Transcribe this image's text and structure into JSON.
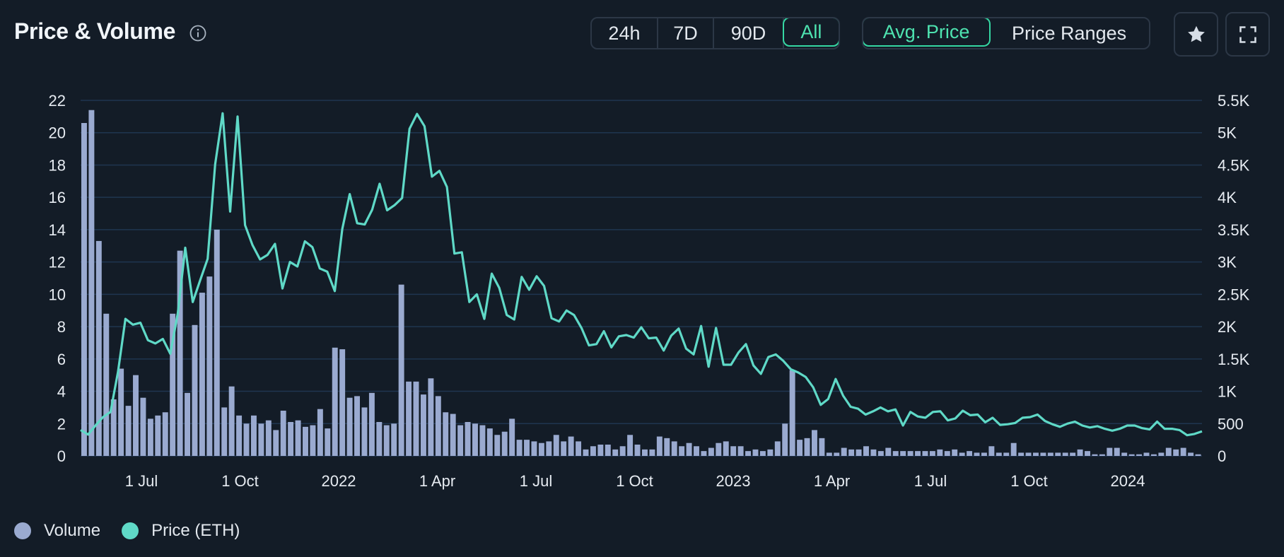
{
  "header": {
    "title": "Price & Volume",
    "info_icon": "info-circle-icon"
  },
  "range_tabs": [
    {
      "label": "24h",
      "active": false
    },
    {
      "label": "7D",
      "active": false
    },
    {
      "label": "90D",
      "active": false
    },
    {
      "label": "All",
      "active": true
    }
  ],
  "mode_tabs": [
    {
      "label": "Avg. Price",
      "active": true
    },
    {
      "label": "Price Ranges",
      "active": false
    }
  ],
  "toolbar": {
    "favorite_icon": "star-icon",
    "fullscreen_icon": "fullscreen-icon"
  },
  "colors": {
    "background": "#131c27",
    "volume": "#9aaad0",
    "price": "#5fd9c7",
    "grid": "#1f3550",
    "accent": "#35d7a3"
  },
  "chart_data": {
    "type": "bar+line",
    "x_ticks": [
      "1 Jul",
      "1 Oct",
      "2022",
      "1 Apr",
      "1 Jul",
      "1 Oct",
      "2023",
      "1 Apr",
      "1 Jul",
      "1 Oct",
      "2024"
    ],
    "y_left": {
      "ticks": [
        "0",
        "2",
        "4",
        "6",
        "8",
        "10",
        "12",
        "14",
        "16",
        "18",
        "20",
        "22"
      ],
      "range": [
        0,
        22
      ]
    },
    "y_right": {
      "ticks": [
        "0",
        "500",
        "1K",
        "1.5K",
        "2K",
        "2.5K",
        "3K",
        "3.5K",
        "4K",
        "4.5K",
        "5K",
        "5.5K"
      ],
      "range": [
        0,
        5500
      ]
    },
    "series": [
      {
        "name": "Volume",
        "type": "bar",
        "axis": "left",
        "values": [
          20.6,
          21.4,
          13.3,
          8.8,
          3.5,
          5.4,
          3.1,
          5.0,
          3.6,
          2.3,
          2.5,
          2.7,
          8.8,
          12.7,
          3.9,
          8.1,
          10.1,
          11.1,
          14.0,
          3.0,
          4.3,
          2.5,
          2.0,
          2.5,
          2.0,
          2.2,
          1.6,
          2.8,
          2.1,
          2.2,
          1.8,
          1.9,
          2.9,
          1.7,
          6.7,
          6.6,
          3.6,
          3.7,
          3.0,
          3.9,
          2.1,
          1.9,
          2.0,
          10.6,
          4.6,
          4.6,
          3.8,
          4.8,
          3.7,
          2.7,
          2.6,
          1.9,
          2.1,
          2.0,
          1.9,
          1.7,
          1.3,
          1.5,
          2.3,
          1.0,
          1.0,
          0.9,
          0.8,
          0.9,
          1.3,
          0.9,
          1.2,
          0.9,
          0.4,
          0.6,
          0.7,
          0.7,
          0.4,
          0.6,
          1.3,
          0.7,
          0.4,
          0.4,
          1.2,
          1.1,
          0.9,
          0.6,
          0.8,
          0.6,
          0.3,
          0.5,
          0.8,
          0.9,
          0.6,
          0.6,
          0.3,
          0.4,
          0.3,
          0.4,
          0.9,
          2.0,
          5.3,
          1.0,
          1.1,
          1.6,
          1.1,
          0.2,
          0.2,
          0.5,
          0.4,
          0.4,
          0.6,
          0.4,
          0.3,
          0.5,
          0.3,
          0.3,
          0.3,
          0.3,
          0.3,
          0.3,
          0.4,
          0.3,
          0.4,
          0.2,
          0.3,
          0.2,
          0.2,
          0.6,
          0.2,
          0.2,
          0.8,
          0.2,
          0.2,
          0.2,
          0.2,
          0.2,
          0.2,
          0.2,
          0.2,
          0.4,
          0.3,
          0.1,
          0.1,
          0.5,
          0.5,
          0.2,
          0.1,
          0.1,
          0.2,
          0.1,
          0.2,
          0.5,
          0.4,
          0.5,
          0.2,
          0.1
        ]
      },
      {
        "name": "Price (ETH)",
        "type": "line",
        "axis": "right",
        "values": [
          400,
          330,
          470,
          600,
          680,
          1300,
          2120,
          2030,
          2060,
          1790,
          1740,
          1810,
          1580,
          2210,
          3220,
          2380,
          2720,
          3050,
          4510,
          5300,
          3780,
          5250,
          3570,
          3260,
          3040,
          3110,
          3280,
          2590,
          3000,
          2930,
          3320,
          3230,
          2900,
          2850,
          2550,
          3510,
          4050,
          3600,
          3580,
          3810,
          4210,
          3800,
          3880,
          3990,
          5060,
          5290,
          5100,
          4320,
          4410,
          4160,
          3130,
          3150,
          2380,
          2500,
          2120,
          2820,
          2600,
          2180,
          2110,
          2770,
          2570,
          2780,
          2630,
          2130,
          2080,
          2250,
          2180,
          1980,
          1710,
          1730,
          1930,
          1680,
          1850,
          1870,
          1830,
          1990,
          1820,
          1830,
          1630,
          1860,
          1970,
          1660,
          1570,
          2010,
          1380,
          1980,
          1410,
          1410,
          1600,
          1730,
          1400,
          1270,
          1530,
          1570,
          1470,
          1340,
          1290,
          1220,
          1060,
          790,
          880,
          1190,
          930,
          760,
          730,
          640,
          690,
          750,
          690,
          720,
          470,
          680,
          610,
          590,
          680,
          690,
          550,
          580,
          700,
          630,
          640,
          520,
          590,
          480,
          490,
          510,
          590,
          600,
          640,
          540,
          490,
          450,
          500,
          530,
          470,
          440,
          460,
          420,
          390,
          420,
          470,
          470,
          430,
          410,
          530,
          420,
          420,
          400,
          320,
          340,
          380
        ]
      }
    ]
  },
  "legend": [
    {
      "label": "Volume",
      "color": "#9aaad0"
    },
    {
      "label": "Price (ETH)",
      "color": "#5fd9c7"
    }
  ]
}
